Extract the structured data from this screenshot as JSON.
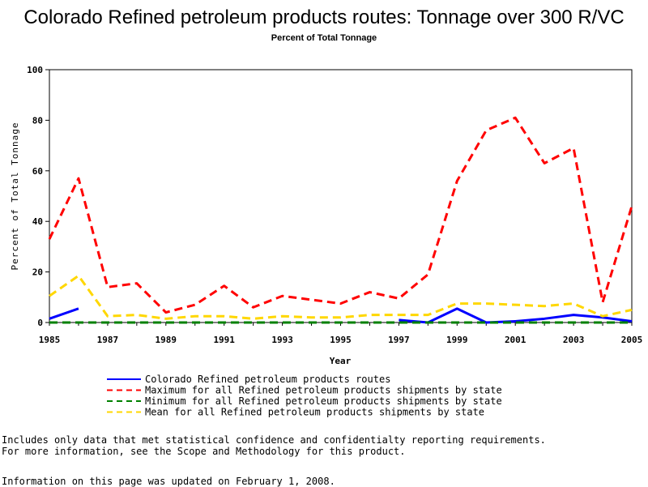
{
  "title": "Colorado Refined petroleum products routes: Tonnage over 300 R/VC",
  "subtitle": "Percent of Total Tonnage",
  "chart_data": {
    "type": "line",
    "title": "Colorado Refined petroleum products routes: Tonnage over 300 R/VC",
    "subtitle": "Percent of Total Tonnage",
    "xlabel": "Year",
    "ylabel": "Percent of Total Tonnage",
    "xlim": [
      1985,
      2005
    ],
    "ylim": [
      0,
      100
    ],
    "xticks": [
      "1985",
      "1987",
      "1989",
      "1991",
      "1993",
      "1995",
      "1997",
      "1999",
      "2001",
      "2003",
      "2005"
    ],
    "yticks": [
      "0",
      "20",
      "40",
      "60",
      "80",
      "100"
    ],
    "grid": false,
    "legend_position": "bottom",
    "x": [
      1985,
      1986,
      1987,
      1988,
      1989,
      1990,
      1991,
      1992,
      1993,
      1994,
      1995,
      1996,
      1997,
      1998,
      1999,
      2000,
      2001,
      2002,
      2003,
      2004,
      2005
    ],
    "series": [
      {
        "name": "Colorado Refined petroleum products routes",
        "color": "#0000ff",
        "dash": "solid",
        "values": [
          1.5,
          5.5,
          null,
          null,
          null,
          null,
          null,
          null,
          null,
          null,
          null,
          null,
          1.0,
          0,
          5.5,
          0,
          0.5,
          1.5,
          3.0,
          2.0,
          0.5
        ]
      },
      {
        "name": "Maximum for all Refined petroleum products shipments by state",
        "color": "#ff0000",
        "dash": "dashed",
        "values": [
          33,
          57,
          14,
          15.5,
          4,
          7,
          14.5,
          6,
          10.5,
          9,
          7.5,
          12,
          9.5,
          19,
          56,
          76,
          81,
          63,
          69,
          8,
          46
        ]
      },
      {
        "name": "Minimum for all Refined petroleum products shipments by state",
        "color": "#008000",
        "dash": "dashed",
        "values": [
          0,
          0,
          0,
          0,
          0,
          0,
          0,
          0,
          0,
          0,
          0,
          0,
          0,
          0,
          0,
          0,
          0,
          0,
          0,
          0,
          0
        ]
      },
      {
        "name": "Mean for all Refined petroleum products shipments by state",
        "color": "#ffd700",
        "dash": "dashed",
        "values": [
          10.5,
          18.5,
          2.5,
          3,
          1.5,
          2.5,
          2.5,
          1.5,
          2.5,
          2,
          2,
          3,
          3,
          3,
          7.5,
          7.5,
          7,
          6.5,
          7.5,
          2.5,
          5
        ]
      }
    ]
  },
  "notes": [
    "Includes only data that met statistical confidence and confidentialty reporting requirements.",
    "For more information, see the Scope and Methodology for this product."
  ],
  "updated": "Information on this page was updated on February 1, 2008."
}
